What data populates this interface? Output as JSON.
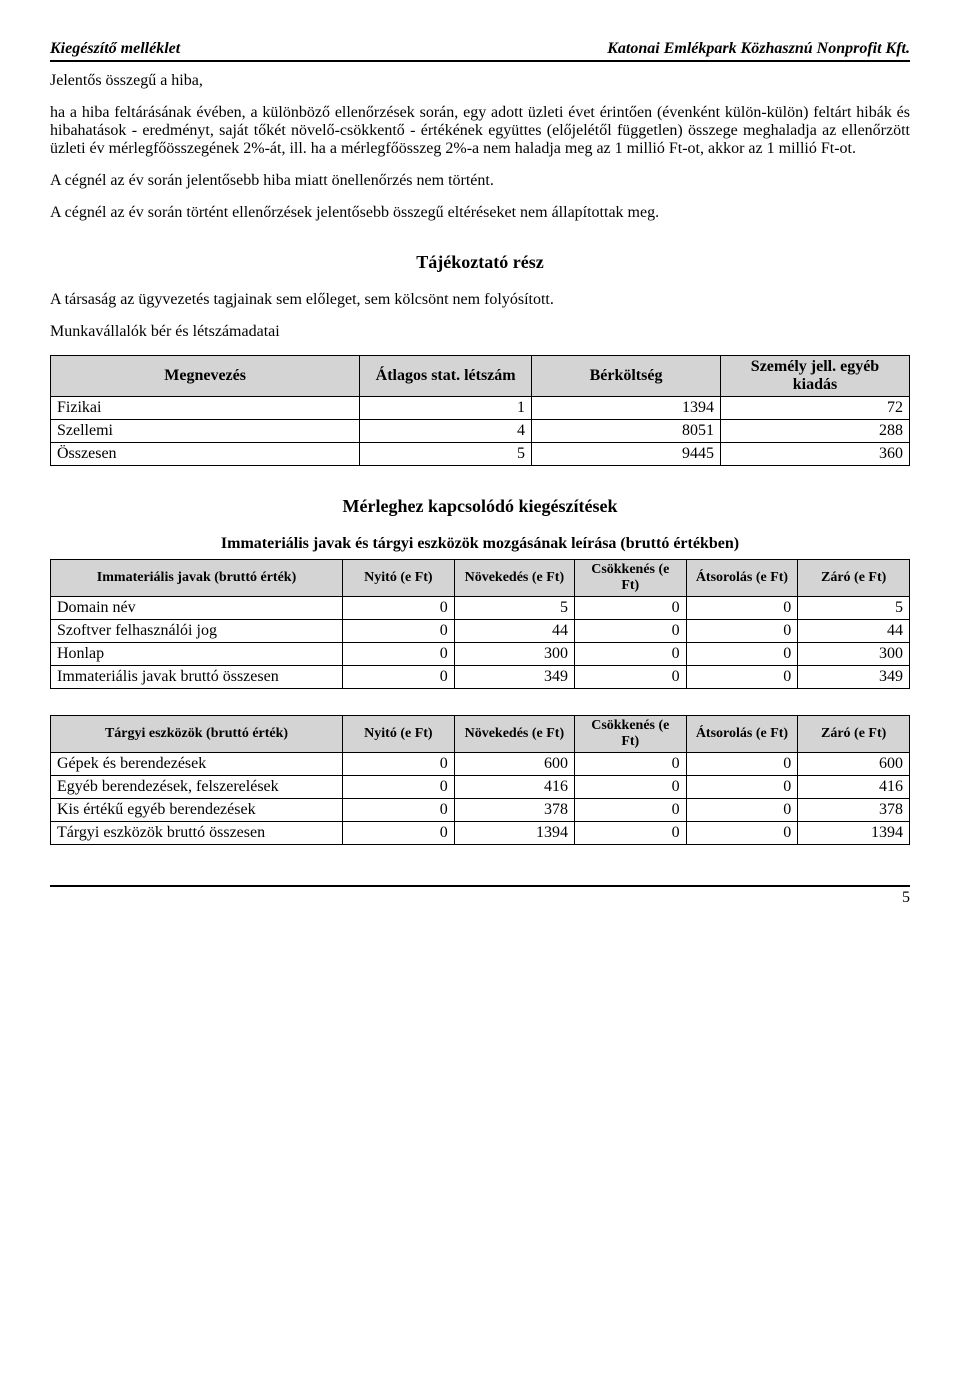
{
  "header": {
    "left": "Kiegészítő melléklet",
    "right": "Katonai Emlékpark Közhasznú Nonprofit Kft."
  },
  "paragraphs": {
    "p1": "Jelentős összegű a hiba,",
    "p2": "ha a hiba feltárásának évében, a különböző ellenőrzések során, egy adott üzleti évet érintően (évenként külön-külön) feltárt hibák és hibahatások - eredményt, saját tőkét növelő-csökkentő - értékének együttes (előjelétől független) összege meghaladja az ellenőrzött üzleti év mérlegfőösszegének 2%-át, ill. ha a mérlegfőösszeg 2%-a nem haladja meg az 1 millió Ft-ot, akkor az 1 millió Ft-ot.",
    "p3": "A cégnél az év során jelentősebb hiba miatt önellenőrzés nem történt.",
    "p4": "A cégnél az év során történt ellenőrzések jelentősebb összegű eltéréseket nem állapítottak meg.",
    "section1_title": "Tájékoztató rész",
    "p5": "A társaság az ügyvezetés tagjainak sem előleget, sem kölcsönt nem folyósított.",
    "p6": "Munkavállalók bér és létszámadatai",
    "section2_title": "Mérleghez kapcsolódó kiegészítések",
    "subhead": "Immateriális javak és tárgyi eszközök mozgásának leírása (bruttó értékben)"
  },
  "table1": {
    "columns": [
      "Megnevezés",
      "Átlagos stat. létszám",
      "Bérköltség",
      "Személy jell. egyéb kiadás"
    ],
    "rows": [
      [
        "Fizikai",
        "1",
        "1394",
        "72"
      ],
      [
        "Szellemi",
        "4",
        "8051",
        "288"
      ],
      [
        "Összesen",
        "5",
        "9445",
        "360"
      ]
    ],
    "col_widths": [
      "36%",
      "20%",
      "22%",
      "22%"
    ]
  },
  "table2": {
    "title_col": "Immateriális javak (bruttó érték)",
    "columns": [
      "Nyitó (e Ft)",
      "Növekedés (e Ft)",
      "Csökkenés (e Ft)",
      "Átsorolás (e Ft)",
      "Záró (e Ft)"
    ],
    "rows": [
      [
        "Domain név",
        "0",
        "5",
        "0",
        "0",
        "5"
      ],
      [
        "Szoftver felhasználói jog",
        "0",
        "44",
        "0",
        "0",
        "44"
      ],
      [
        "Honlap",
        "0",
        "300",
        "0",
        "0",
        "300"
      ],
      [
        "Immateriális javak bruttó összesen",
        "0",
        "349",
        "0",
        "0",
        "349"
      ]
    ],
    "col_widths": [
      "34%",
      "13%",
      "14%",
      "13%",
      "13%",
      "13%"
    ]
  },
  "table3": {
    "title_col": "Tárgyi eszközök (bruttó érték)",
    "columns": [
      "Nyitó (e Ft)",
      "Növekedés (e Ft)",
      "Csökkenés (e Ft)",
      "Átsorolás (e Ft)",
      "Záró (e Ft)"
    ],
    "rows": [
      [
        "Gépek és berendezések",
        "0",
        "600",
        "0",
        "0",
        "600"
      ],
      [
        "Egyéb berendezések, felszerelések",
        "0",
        "416",
        "0",
        "0",
        "416"
      ],
      [
        "Kis értékű egyéb berendezések",
        "0",
        "378",
        "0",
        "0",
        "378"
      ],
      [
        "Tárgyi eszközök bruttó összesen",
        "0",
        "1394",
        "0",
        "0",
        "1394"
      ]
    ],
    "col_widths": [
      "34%",
      "13%",
      "14%",
      "13%",
      "13%",
      "13%"
    ]
  },
  "footer": {
    "page": "5"
  }
}
